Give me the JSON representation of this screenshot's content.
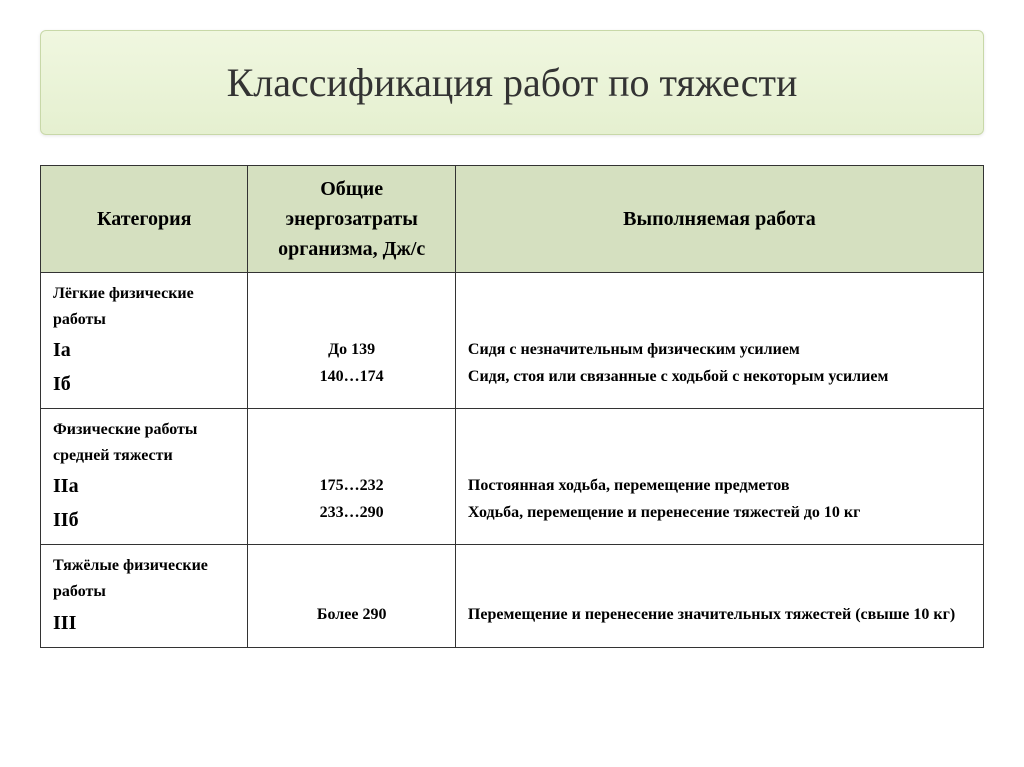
{
  "title": "Классификация работ по тяжести",
  "headers": {
    "category": "Категория",
    "energy": "Общие энергозатраты организма, Дж/с",
    "work": "Выполняемая работа"
  },
  "rows": [
    {
      "category_label": "Лёгкие физические работы",
      "codes": [
        "Iа",
        "Iб"
      ],
      "energy_lines": [
        "До 139",
        "140…174"
      ],
      "work_lines": [
        "Сидя с незначительным физическим усилием",
        "Сидя, стоя или связанные с ходьбой с некоторым усилием"
      ]
    },
    {
      "category_label": "Физические работы средней тяжести",
      "codes": [
        "IIа",
        "IIб"
      ],
      "energy_lines": [
        "175…232",
        "233…290"
      ],
      "work_lines": [
        "Постоянная ходьба, перемещение предметов",
        "Ходьба, перемещение и перенесение тяжестей до 10 кг"
      ]
    },
    {
      "category_label": "Тяжёлые физические работы",
      "codes": [
        "III"
      ],
      "energy_lines": [
        "Более 290"
      ],
      "work_lines": [
        "Перемещение и перенесение значительных тяжестей (свыше 10 кг)"
      ]
    }
  ],
  "colors": {
    "header_bg": "#d5e0c0",
    "title_bg_top": "#f0f7e0",
    "title_bg_bottom": "#e5f0d0",
    "border": "#333333",
    "text": "#333333"
  }
}
